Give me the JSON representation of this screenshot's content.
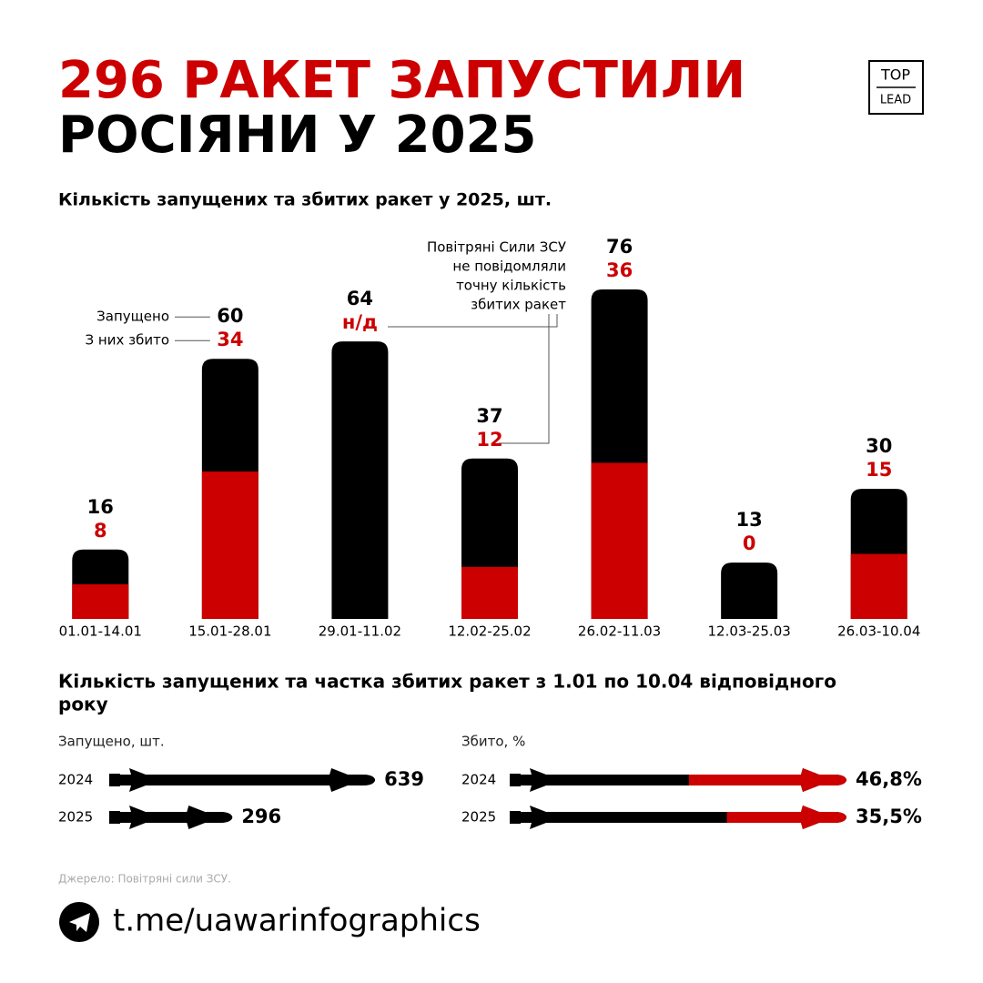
{
  "title_lines": [
    "296 РАКЕТ ЗАПУСТИЛИ",
    "РОСІЯНИ У 2025"
  ],
  "logo": [
    "TOP",
    "LEAD"
  ],
  "section2_title_lines": [
    "Кількість запущених та частка збитих ракет з 1.01 по 10.04 відповідного",
    "року"
  ],
  "chart_data": [
    {
      "type": "bar",
      "title": "Кількість запущених та збитих ракет у 2025, шт.",
      "categories": [
        "01.01-14.01",
        "15.01-28.01",
        "29.01-11.02",
        "12.02-25.02",
        "26.02-11.03",
        "12.03-25.03",
        "26.03-10.04"
      ],
      "series": [
        {
          "name": "Запущено",
          "color": "#000000",
          "values": [
            16,
            60,
            64,
            37,
            76,
            13,
            30
          ]
        },
        {
          "name": "З них збито",
          "color": "#cc0000",
          "values": [
            8,
            34,
            null,
            12,
            36,
            0,
            15
          ],
          "value_labels": [
            "8",
            "34",
            "н/д",
            "12",
            "36",
            "0",
            "15"
          ]
        }
      ],
      "annotation_lines": [
        "Повітряні Сили ЗСУ",
        "не повідомляли",
        "точну кількість",
        "збитих ракет"
      ],
      "ylim": [
        0,
        76
      ]
    },
    {
      "type": "rocket",
      "title": "Запущено, шт.",
      "categories": [
        "2024",
        "2025"
      ],
      "values": [
        639,
        296
      ],
      "color": "#000000",
      "xlim": [
        0,
        700
      ]
    },
    {
      "type": "rocket",
      "title": "Збито, %",
      "categories": [
        "2024",
        "2025"
      ],
      "values": [
        46.8,
        35.5
      ],
      "value_labels": [
        "46,8%",
        "35,5%"
      ],
      "color": "#cc0000",
      "track_color": "#000000",
      "xlim": [
        0,
        100
      ]
    }
  ],
  "source": "Джерело: Повітряні сили ЗСУ.",
  "link": "t.me/uawarinfographics"
}
